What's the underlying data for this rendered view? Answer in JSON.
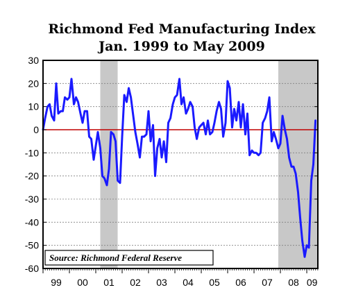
{
  "chart_data": {
    "type": "line",
    "title": "Richmond Fed Manufacturing Index",
    "subtitle": "Jan. 1999 to May 2009",
    "source": "Source: Richmond Federal Reserve",
    "ylim": [
      -60,
      30
    ],
    "yticks": [
      30,
      20,
      10,
      0,
      -10,
      -20,
      -30,
      -40,
      -50,
      -60
    ],
    "xlim": [
      1999.0,
      2009.42
    ],
    "xtick_labels": [
      {
        "label": "99",
        "x": 1999.5
      },
      {
        "label": "00",
        "x": 2000.5
      },
      {
        "label": "01",
        "x": 2001.5
      },
      {
        "label": "02",
        "x": 2002.5
      },
      {
        "label": "03",
        "x": 2003.5
      },
      {
        "label": "04",
        "x": 2004.5
      },
      {
        "label": "05",
        "x": 2005.5
      },
      {
        "label": "06",
        "x": 2006.5
      },
      {
        "label": "07",
        "x": 2007.5
      },
      {
        "label": "08",
        "x": 2008.5
      },
      {
        "label": "09",
        "x": 2009.2
      }
    ],
    "recessions": [
      {
        "start": 2001.17,
        "end": 2001.83
      },
      {
        "start": 2007.92,
        "end": 2009.42
      }
    ],
    "zero_line": true,
    "grid": "horizontal dotted",
    "colors": {
      "series": "#1a1aff",
      "zero_line": "#c00000",
      "recession": "#c8c8c8"
    },
    "series": [
      {
        "x": [
          1999.0,
          1999.08,
          1999.17,
          1999.25,
          1999.33,
          1999.42,
          1999.5,
          1999.58,
          1999.67,
          1999.75,
          1999.83,
          1999.92,
          2000.0,
          2000.08,
          2000.17,
          2000.25,
          2000.33,
          2000.42,
          2000.5,
          2000.58,
          2000.67,
          2000.75,
          2000.83,
          2000.92,
          2001.0,
          2001.08,
          2001.17,
          2001.25,
          2001.33,
          2001.42,
          2001.5,
          2001.58,
          2001.67,
          2001.75,
          2001.83,
          2001.92,
          2002.0,
          2002.08,
          2002.17,
          2002.25,
          2002.33,
          2002.42,
          2002.5,
          2002.58,
          2002.67,
          2002.75,
          2002.83,
          2002.92,
          2003.0,
          2003.08,
          2003.17,
          2003.25,
          2003.33,
          2003.42,
          2003.5,
          2003.58,
          2003.67,
          2003.75,
          2003.83,
          2003.92,
          2004.0,
          2004.08,
          2004.17,
          2004.25,
          2004.33,
          2004.42,
          2004.5,
          2004.58,
          2004.67,
          2004.75,
          2004.83,
          2004.92,
          2005.0,
          2005.08,
          2005.17,
          2005.25,
          2005.33,
          2005.42,
          2005.5,
          2005.58,
          2005.67,
          2005.75,
          2005.83,
          2005.92,
          2006.0,
          2006.08,
          2006.17,
          2006.25,
          2006.33,
          2006.42,
          2006.5,
          2006.58,
          2006.67,
          2006.75,
          2006.83,
          2006.92,
          2007.0,
          2007.08,
          2007.17,
          2007.25,
          2007.33,
          2007.42,
          2007.5,
          2007.58,
          2007.67,
          2007.75,
          2007.83,
          2007.92,
          2008.0,
          2008.08,
          2008.17,
          2008.25,
          2008.33,
          2008.42,
          2008.5,
          2008.58,
          2008.67,
          2008.75,
          2008.83,
          2008.92,
          2009.0,
          2009.08,
          2009.17,
          2009.25,
          2009.33
        ],
        "values": [
          0,
          5,
          10,
          11,
          6,
          4,
          20,
          7,
          8,
          8,
          14,
          13,
          14,
          22,
          11,
          14,
          12,
          7,
          3,
          8,
          8,
          -3,
          -4,
          -13,
          -7,
          -1,
          -8,
          -20,
          -21,
          -24,
          -17,
          -1,
          -2,
          -5,
          -22,
          -23,
          -3,
          15,
          12,
          18,
          14,
          6,
          -1,
          -6,
          -12,
          -3,
          -3,
          -2,
          8,
          -5,
          2,
          -20,
          -8,
          -4,
          -12,
          -5,
          -14,
          3,
          5,
          11,
          14,
          15,
          22,
          11,
          14,
          7,
          9,
          12,
          10,
          1,
          -4,
          1,
          2,
          3,
          -2,
          4,
          -2,
          -1,
          3,
          8,
          12,
          9,
          -3,
          3,
          21,
          18,
          1,
          9,
          4,
          12,
          1,
          11,
          -2,
          7,
          -11,
          -9,
          -10,
          -10,
          -11,
          -10,
          3,
          5,
          8,
          14,
          -5,
          -1,
          -4,
          -8,
          -6,
          6,
          0,
          -4,
          -12,
          -16,
          -16,
          -19,
          -27,
          -38,
          -48,
          -55,
          -50,
          -51,
          -22,
          -15,
          4
        ]
      }
    ]
  }
}
